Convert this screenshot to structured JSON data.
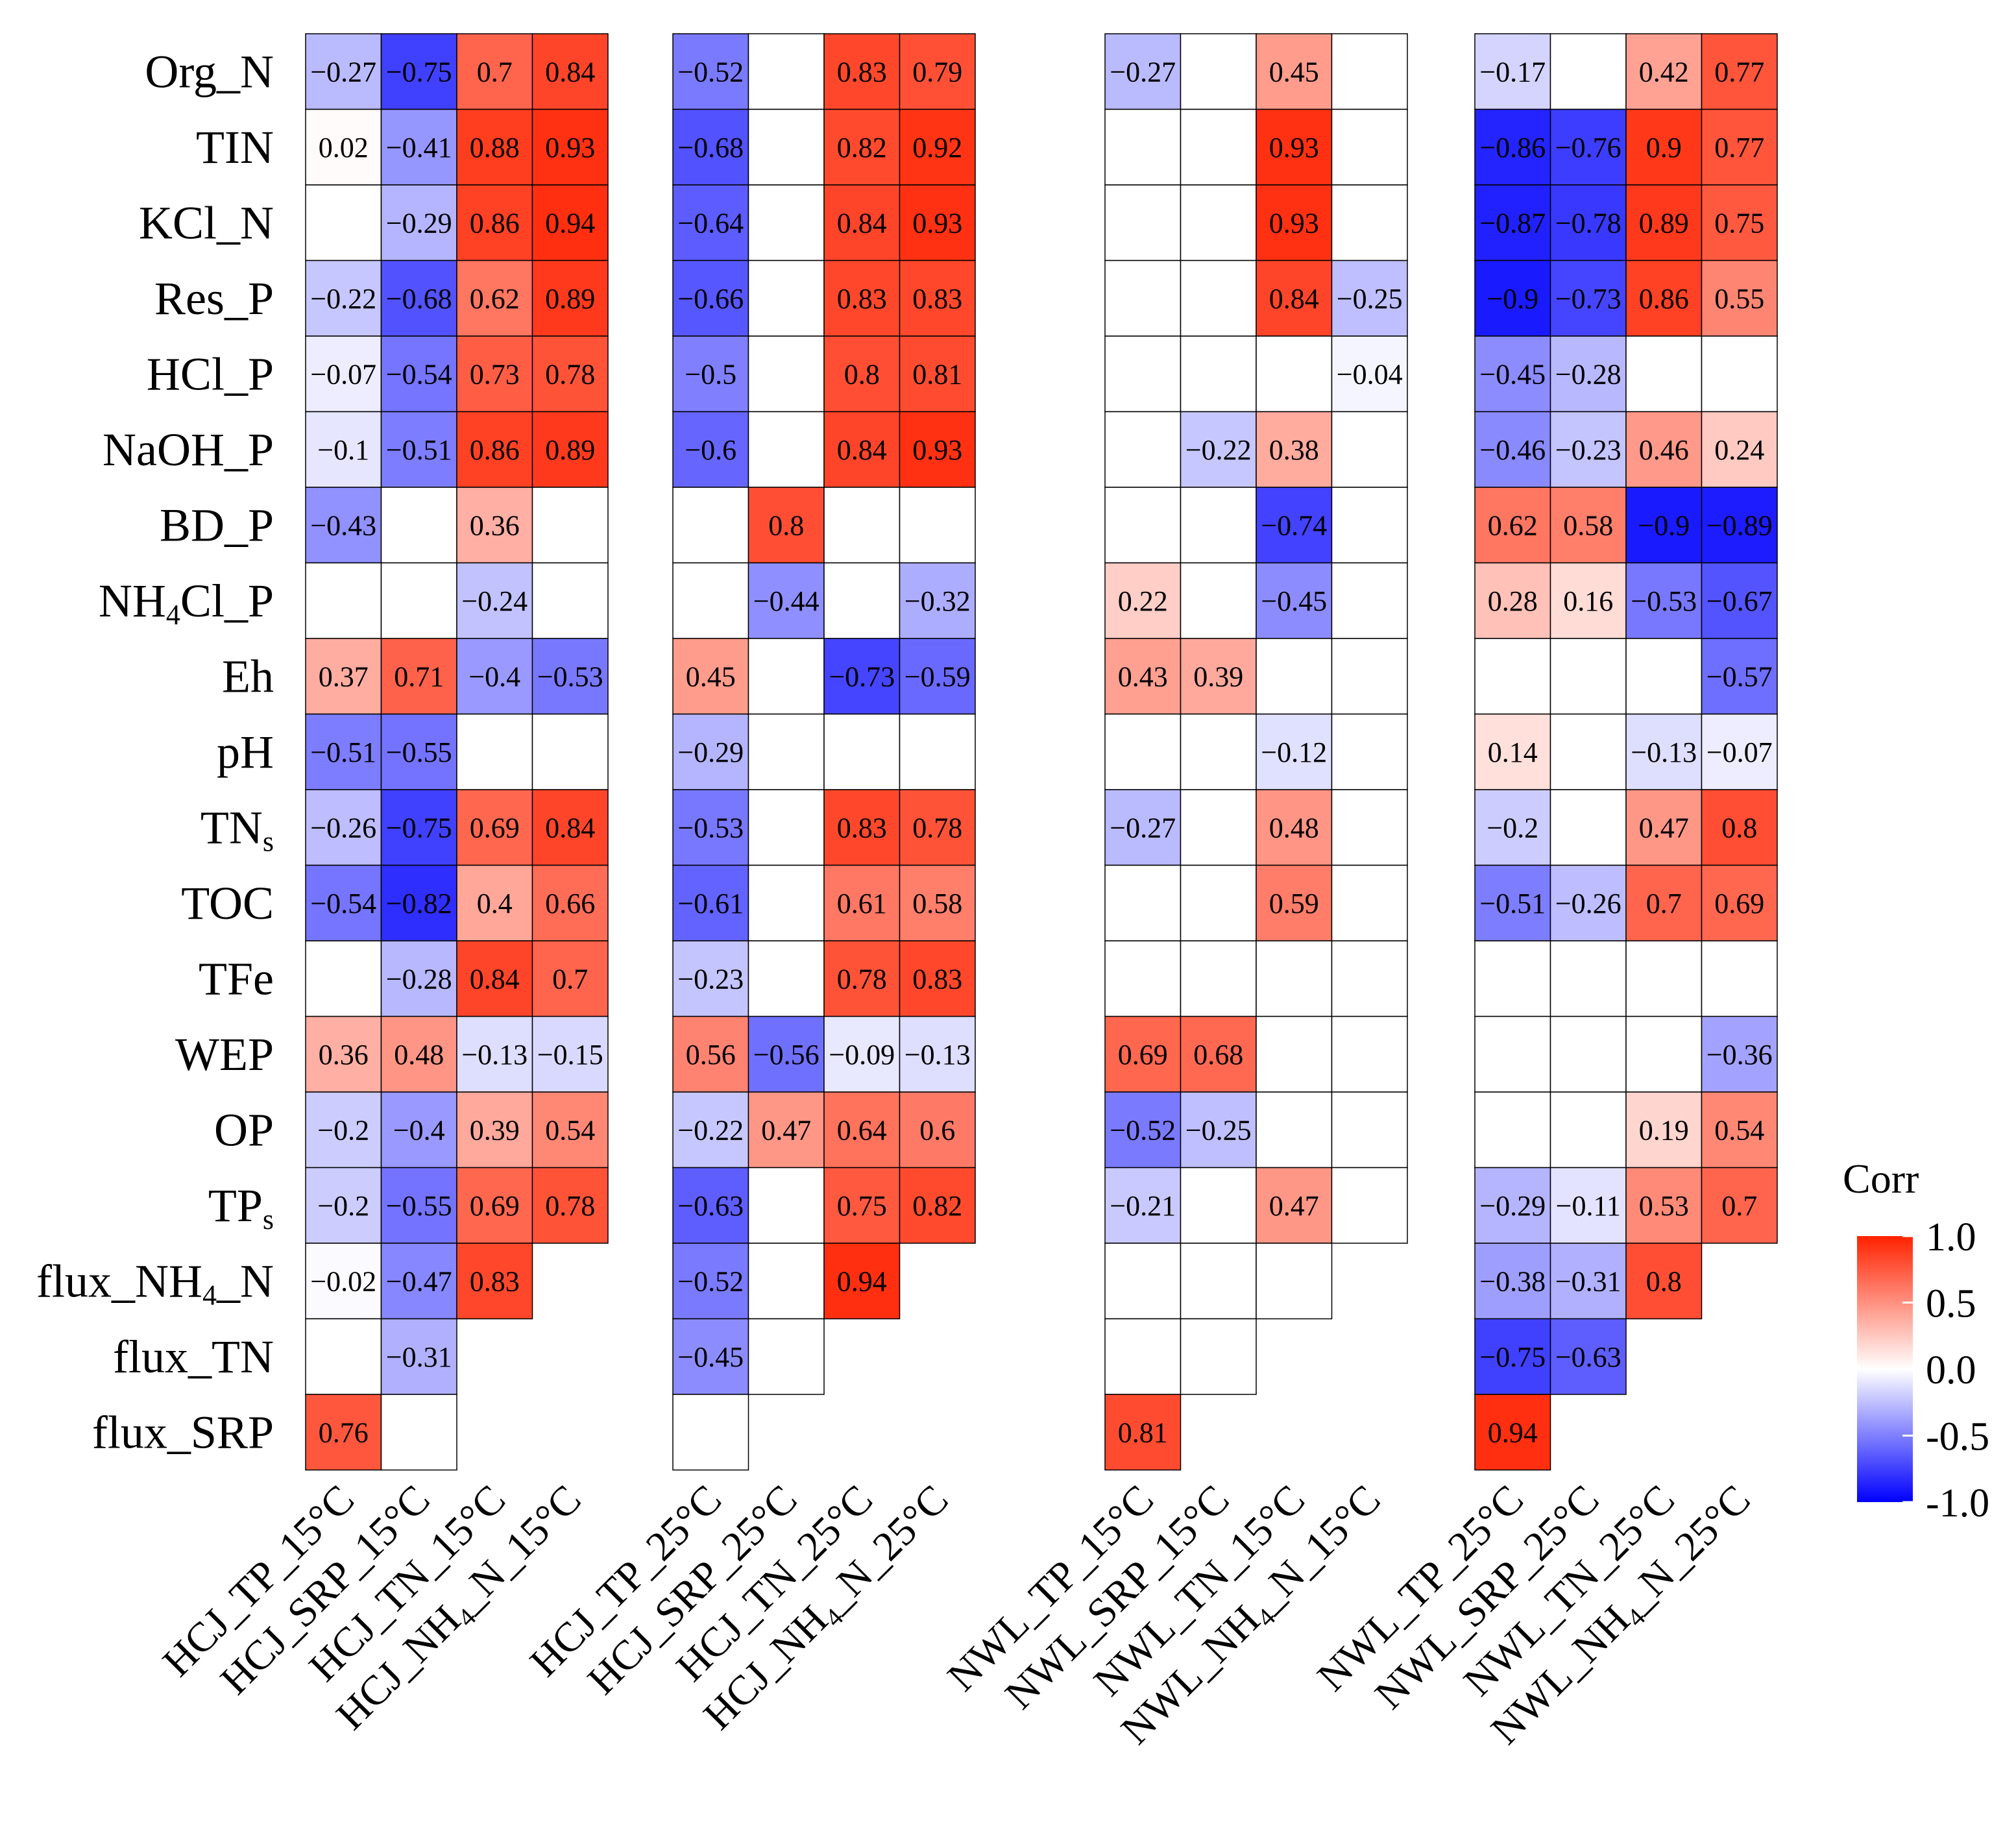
{
  "chart_data": {
    "type": "heatmap",
    "title": "",
    "legend": {
      "title": "Corr",
      "position": "right",
      "ticks": [
        "1.0",
        "0.5",
        "0.0",
        "-0.5",
        "-1.0"
      ],
      "range": [
        -1,
        1
      ]
    },
    "colors": {
      "positive": "#ff2200",
      "neutral": "#ffffff",
      "negative": "#0000ff",
      "border": "#000000"
    },
    "rows": [
      {
        "name": "Org_N",
        "text": "Org_N"
      },
      {
        "name": "TIN",
        "text": "TIN"
      },
      {
        "name": "KCl_N",
        "text": "KCl_N"
      },
      {
        "name": "Res_P",
        "text": "Res_P"
      },
      {
        "name": "HCl_P",
        "text": "HCl_P"
      },
      {
        "name": "NaOH_P",
        "text": "NaOH_P"
      },
      {
        "name": "BD_P",
        "text": "BD_P"
      },
      {
        "name": "NH4Cl_P",
        "text": "NH",
        "sub": "4",
        "rest": "Cl_P"
      },
      {
        "name": "Eh",
        "text": "Eh"
      },
      {
        "name": "pH",
        "text": "pH"
      },
      {
        "name": "TNs",
        "text": "TN",
        "sub": "s",
        "rest": ""
      },
      {
        "name": "TOC",
        "text": "TOC"
      },
      {
        "name": "TFe",
        "text": "TFe"
      },
      {
        "name": "WEP",
        "text": "WEP"
      },
      {
        "name": "OP",
        "text": "OP"
      },
      {
        "name": "TPs",
        "text": "TP",
        "sub": "s",
        "rest": ""
      },
      {
        "name": "flux_NH4_N",
        "text": "flux_NH",
        "sub": "4",
        "rest": "_N"
      },
      {
        "name": "flux_TN",
        "text": "flux_TN"
      },
      {
        "name": "flux_SRP",
        "text": "flux_SRP"
      }
    ],
    "groups": [
      {
        "columns": [
          {
            "name": "HCJ_TP_15C",
            "text": "HCJ_TP_15°C"
          },
          {
            "name": "HCJ_SRP_15C",
            "text": "HCJ_SRP_15°C"
          },
          {
            "name": "HCJ_TN_15C",
            "text": "HCJ_TN_15°C"
          },
          {
            "name": "HCJ_NH4_N_15C",
            "text": "HCJ_NH",
            "sub": "4",
            "rest": "_N_15°C"
          }
        ],
        "extent": [
          19,
          19,
          17,
          16
        ],
        "values": [
          [
            -0.27,
            0.02,
            null,
            -0.22,
            -0.07,
            -0.1,
            -0.43,
            null,
            0.37,
            -0.51,
            -0.26,
            -0.54,
            null,
            0.36,
            -0.2,
            -0.2,
            -0.02,
            null,
            0.76
          ],
          [
            -0.75,
            -0.41,
            -0.29,
            -0.68,
            -0.54,
            -0.51,
            null,
            null,
            0.71,
            -0.55,
            -0.75,
            -0.82,
            -0.28,
            0.48,
            -0.4,
            -0.55,
            -0.47,
            -0.31,
            null
          ],
          [
            0.7,
            0.88,
            0.86,
            0.62,
            0.73,
            0.86,
            0.36,
            -0.24,
            -0.4,
            null,
            0.69,
            0.4,
            0.84,
            -0.13,
            0.39,
            0.69,
            0.83,
            null,
            null
          ],
          [
            0.84,
            0.93,
            0.94,
            0.89,
            0.78,
            0.89,
            null,
            null,
            -0.53,
            null,
            0.84,
            0.66,
            0.7,
            -0.15,
            0.54,
            0.78,
            null,
            null,
            null
          ]
        ]
      },
      {
        "columns": [
          {
            "name": "HCJ_TP_25C",
            "text": "HCJ_TP_25°C"
          },
          {
            "name": "HCJ_SRP_25C",
            "text": "HCJ_SRP_25°C"
          },
          {
            "name": "HCJ_TN_25C",
            "text": "HCJ_TN_25°C"
          },
          {
            "name": "HCJ_NH4_N_25C",
            "text": "HCJ_NH",
            "sub": "4",
            "rest": "_N_25°C"
          }
        ],
        "extent": [
          19,
          18,
          17,
          16
        ],
        "values": [
          [
            -0.52,
            -0.68,
            -0.64,
            -0.66,
            -0.5,
            -0.6,
            null,
            null,
            0.45,
            -0.29,
            -0.53,
            -0.61,
            -0.23,
            0.56,
            -0.22,
            -0.63,
            -0.52,
            -0.45,
            null
          ],
          [
            null,
            null,
            null,
            null,
            null,
            null,
            0.8,
            -0.44,
            null,
            null,
            null,
            null,
            null,
            -0.56,
            0.47,
            null,
            null,
            null,
            null
          ],
          [
            0.83,
            0.82,
            0.84,
            0.83,
            0.8,
            0.84,
            null,
            null,
            -0.73,
            null,
            0.83,
            0.61,
            0.78,
            -0.09,
            0.64,
            0.75,
            0.94,
            null,
            null
          ],
          [
            0.79,
            0.92,
            0.93,
            0.83,
            0.81,
            0.93,
            null,
            -0.32,
            -0.59,
            null,
            0.78,
            0.58,
            0.83,
            -0.13,
            0.6,
            0.82,
            null,
            null,
            null
          ]
        ]
      },
      {
        "columns": [
          {
            "name": "NWL_TP_15C",
            "text": "NWL_TP_15°C"
          },
          {
            "name": "NWL_SRP_15C",
            "text": "NWL_SRP_15°C"
          },
          {
            "name": "NWL_TN_15C",
            "text": "NWL_TN_15°C"
          },
          {
            "name": "NWL_NH4_N_15C",
            "text": "NWL_NH",
            "sub": "4",
            "rest": "_N_15°C"
          }
        ],
        "extent": [
          19,
          18,
          17,
          16
        ],
        "values": [
          [
            -0.27,
            null,
            null,
            null,
            null,
            null,
            null,
            0.22,
            0.43,
            null,
            -0.27,
            null,
            null,
            0.69,
            -0.52,
            -0.21,
            null,
            null,
            0.81
          ],
          [
            null,
            null,
            null,
            null,
            null,
            -0.22,
            null,
            null,
            0.39,
            null,
            null,
            null,
            null,
            0.68,
            -0.25,
            null,
            null,
            null,
            null
          ],
          [
            0.45,
            0.93,
            0.93,
            0.84,
            null,
            0.38,
            -0.74,
            -0.45,
            null,
            -0.12,
            0.48,
            0.59,
            null,
            null,
            null,
            0.47,
            null,
            null,
            null
          ],
          [
            null,
            null,
            null,
            -0.25,
            -0.04,
            null,
            null,
            null,
            null,
            null,
            null,
            null,
            null,
            null,
            null,
            null,
            null,
            null,
            null
          ]
        ]
      },
      {
        "columns": [
          {
            "name": "NWL_TP_25C",
            "text": "NWL_TP_25°C"
          },
          {
            "name": "NWL_SRP_25C",
            "text": "NWL_SRP_25°C"
          },
          {
            "name": "NWL_TN_25C",
            "text": "NWL_TN_25°C"
          },
          {
            "name": "NWL_NH4_N_25C",
            "text": "NWL_NH",
            "sub": "4",
            "rest": "_N_25°C"
          }
        ],
        "extent": [
          19,
          18,
          17,
          16
        ],
        "values": [
          [
            -0.17,
            -0.86,
            -0.87,
            -0.9,
            -0.45,
            -0.46,
            0.62,
            0.28,
            null,
            0.14,
            -0.2,
            -0.51,
            null,
            null,
            null,
            -0.29,
            -0.38,
            -0.75,
            0.94
          ],
          [
            null,
            -0.76,
            -0.78,
            -0.73,
            -0.28,
            -0.23,
            0.58,
            0.16,
            null,
            null,
            null,
            -0.26,
            null,
            null,
            null,
            -0.11,
            -0.31,
            -0.63,
            null
          ],
          [
            0.42,
            0.9,
            0.89,
            0.86,
            null,
            0.46,
            -0.9,
            -0.53,
            null,
            -0.13,
            0.47,
            0.7,
            null,
            null,
            0.19,
            0.53,
            0.8,
            null,
            null
          ],
          [
            0.77,
            0.77,
            0.75,
            0.55,
            null,
            0.24,
            -0.89,
            -0.67,
            -0.57,
            -0.07,
            0.8,
            0.69,
            null,
            -0.36,
            0.54,
            0.7,
            null,
            null,
            null
          ]
        ]
      }
    ]
  }
}
